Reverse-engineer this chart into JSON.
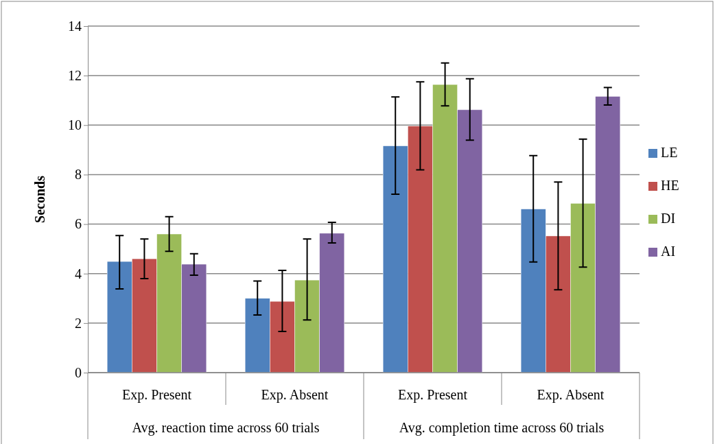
{
  "chart_data": {
    "type": "bar",
    "ylabel": "Seconds",
    "categories": [
      "Exp. Present",
      "Exp. Absent",
      "Exp. Present",
      "Exp. Absent"
    ],
    "annotations": [
      "Avg. reaction time across 60 trials",
      "Avg. completion time across 60 trials"
    ],
    "series": [
      {
        "name": "LE",
        "color": "#4f81bd",
        "values": [
          4.49,
          3.0,
          9.16,
          6.61
        ],
        "errors": [
          [
            3.38,
            5.54
          ],
          [
            2.33,
            3.7
          ],
          [
            7.21,
            11.14
          ],
          [
            4.47,
            8.77
          ]
        ]
      },
      {
        "name": "HE",
        "color": "#c0504d",
        "values": [
          4.6,
          2.88,
          9.96,
          5.52
        ],
        "errors": [
          [
            3.8,
            5.4
          ],
          [
            1.66,
            4.13
          ],
          [
            8.19,
            11.75
          ],
          [
            3.35,
            7.7
          ]
        ]
      },
      {
        "name": "DI",
        "color": "#9bbb59",
        "values": [
          5.6,
          3.74,
          11.64,
          6.84
        ],
        "errors": [
          [
            4.9,
            6.3
          ],
          [
            2.13,
            5.4
          ],
          [
            10.78,
            12.51
          ],
          [
            4.26,
            9.43
          ]
        ]
      },
      {
        "name": "AI",
        "color": "#8064a2",
        "values": [
          4.38,
          5.63,
          10.62,
          11.16
        ],
        "errors": [
          [
            3.94,
            4.8
          ],
          [
            5.24,
            6.07
          ],
          [
            9.39,
            11.87
          ],
          [
            10.81,
            11.52
          ]
        ]
      }
    ],
    "ylim": [
      0,
      14
    ],
    "yticks": [
      0,
      2,
      4,
      6,
      8,
      10,
      12,
      14
    ],
    "grid": "y",
    "legend": "right"
  }
}
